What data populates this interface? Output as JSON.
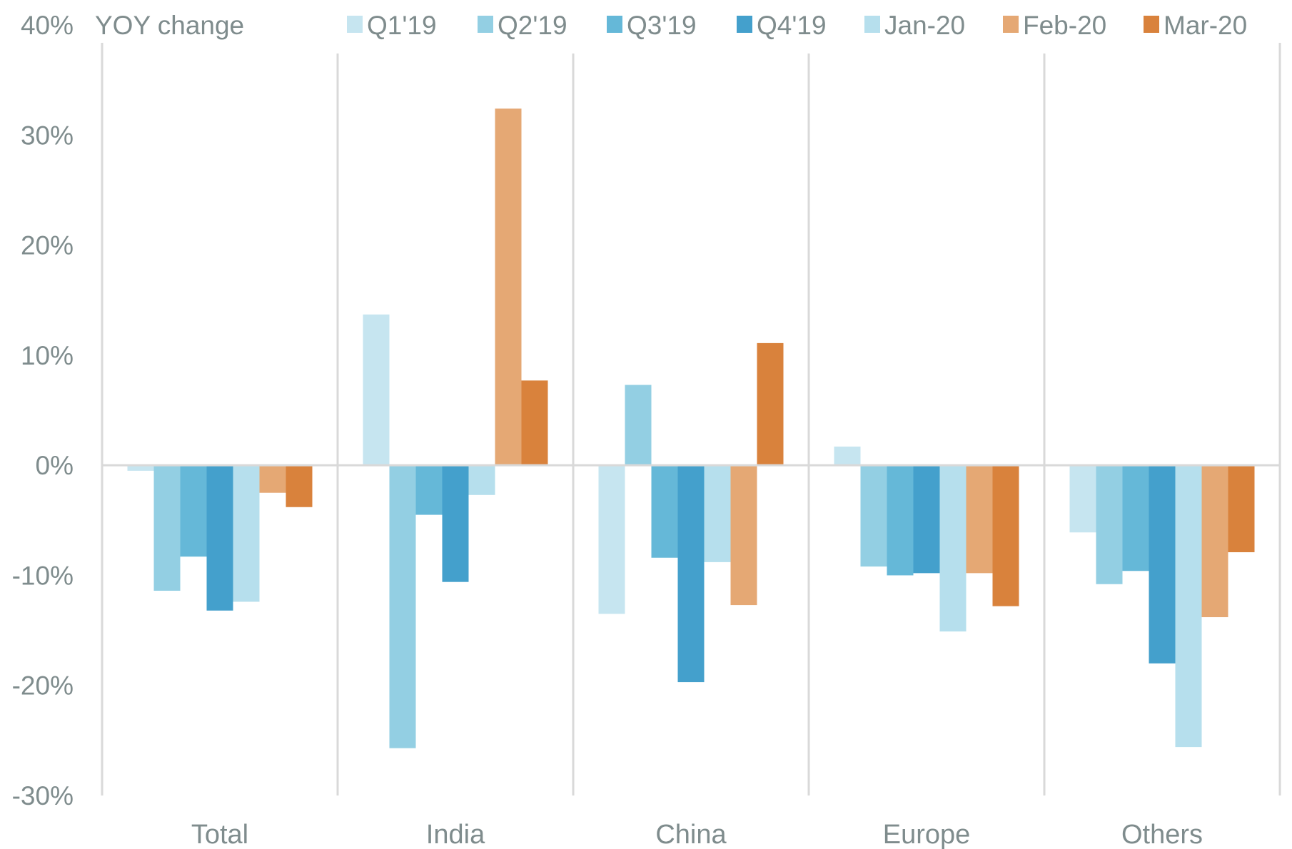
{
  "chart_data": {
    "type": "bar",
    "title": "",
    "ylabel": "YOY change",
    "xlabel": "",
    "ylim": [
      -30,
      40
    ],
    "yticks": [
      -30,
      -20,
      -10,
      0,
      10,
      20,
      30,
      40
    ],
    "ytick_labels": [
      "-30%",
      "-20%",
      "-10%",
      "0%",
      "10%",
      "20%",
      "30%",
      "40%"
    ],
    "grid": false,
    "legend_position": "top",
    "categories": [
      "Total",
      "India",
      "China",
      "Europe",
      "Others"
    ],
    "series": [
      {
        "name": "Q1'19",
        "color": "#c6e5f0",
        "values": [
          -0.5,
          13.7,
          -13.5,
          1.7,
          -6.1
        ]
      },
      {
        "name": "Q2'19",
        "color": "#93cfe3",
        "values": [
          -11.4,
          -25.7,
          7.3,
          -9.2,
          -10.8
        ]
      },
      {
        "name": "Q3'19",
        "color": "#65b8d8",
        "values": [
          -8.3,
          -4.5,
          -8.4,
          -10.0,
          -9.6
        ]
      },
      {
        "name": "Q4'19",
        "color": "#44a0cc",
        "values": [
          -13.2,
          -10.6,
          -19.7,
          -9.8,
          -18.0
        ]
      },
      {
        "name": "Jan-20",
        "color": "#b6dfed",
        "values": [
          -12.4,
          -2.7,
          -8.8,
          -15.1,
          -25.6
        ]
      },
      {
        "name": "Feb-20",
        "color": "#e5a874",
        "values": [
          -2.5,
          32.4,
          -12.7,
          -9.8,
          -13.8
        ]
      },
      {
        "name": "Mar-20",
        "color": "#d9823c",
        "values": [
          -3.8,
          7.7,
          11.1,
          -12.8,
          -7.9
        ]
      }
    ],
    "axis_color": "#d9d9d9",
    "text_color": "#7f8c8d"
  }
}
